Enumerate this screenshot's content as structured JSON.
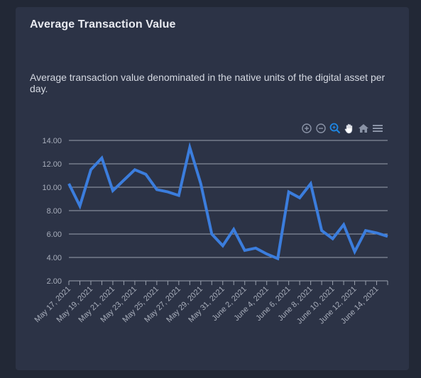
{
  "card": {
    "title": "Average Transaction Value",
    "description": "Average transaction value denominated in the native units of the digital asset per day."
  },
  "toolbar": {
    "icons": [
      "zoom-in-icon",
      "zoom-out-icon",
      "zoom-select-icon",
      "pan-hand-icon",
      "home-reset-icon",
      "menu-icon"
    ],
    "active_color": "#1e88e5",
    "icon_color": "#8a93a6"
  },
  "colors": {
    "line": "#3b7ddd",
    "grid": "#9aa1ae"
  },
  "chart_data": {
    "type": "line",
    "ylim": [
      2,
      14
    ],
    "yticks": [
      "14.00",
      "12.00",
      "10.00",
      "8.00",
      "6.00",
      "4.00",
      "2.00"
    ],
    "grid": true,
    "x": [
      "May 17, 2021",
      "May 18, 2021",
      "May 19, 2021",
      "May 20, 2021",
      "May 21, 2021",
      "May 22, 2021",
      "May 23, 2021",
      "May 24, 2021",
      "May 25, 2021",
      "May 26, 2021",
      "May 27, 2021",
      "May 28, 2021",
      "May 29, 2021",
      "May 30, 2021",
      "May 31, 2021",
      "June 1, 2021",
      "June 2, 2021",
      "June 3, 2021",
      "June 4, 2021",
      "June 5, 2021",
      "June 6, 2021",
      "June 7, 2021",
      "June 8, 2021",
      "June 9, 2021",
      "June 10, 2021",
      "June 11, 2021",
      "June 12, 2021",
      "June 13, 2021",
      "June 14, 2021",
      "June 15, 2021"
    ],
    "xtick_labels": [
      "May 17, 2021",
      "May 19, 2021",
      "May 21, 2021",
      "May 23, 2021",
      "May 25, 2021",
      "May 27, 2021",
      "May 29, 2021",
      "May 31, 2021",
      "June 2, 2021",
      "June 4, 2021",
      "June 6, 2021",
      "June 8, 2021",
      "June 10, 2021",
      "June 12, 2021",
      "June 14, 2021"
    ],
    "series": [
      {
        "values": [
          10.3,
          8.4,
          11.5,
          12.5,
          9.7,
          10.6,
          11.5,
          11.1,
          9.8,
          9.6,
          9.3,
          13.4,
          10.3,
          6.0,
          5.0,
          6.4,
          4.6,
          4.8,
          4.3,
          3.9,
          9.6,
          9.1,
          10.3,
          6.3,
          5.6,
          6.8,
          4.5,
          6.3,
          6.1,
          5.8
        ]
      }
    ]
  }
}
